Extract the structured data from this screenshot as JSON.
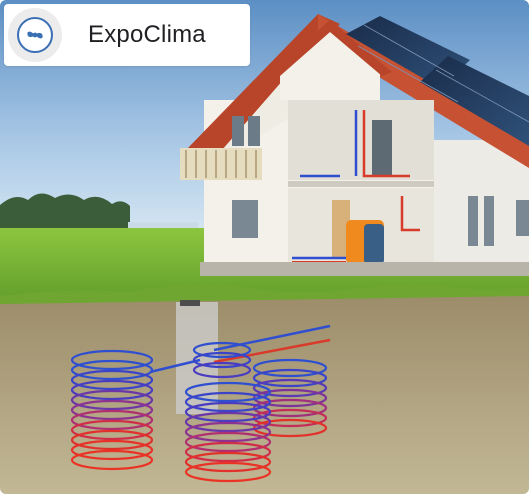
{
  "brand": {
    "name": "ExpoClima",
    "logo_icon": "fan-logo-icon",
    "accent_color": "#3b6fb4"
  },
  "image": {
    "icon": "house-geothermal-heat-pump-illustration"
  }
}
